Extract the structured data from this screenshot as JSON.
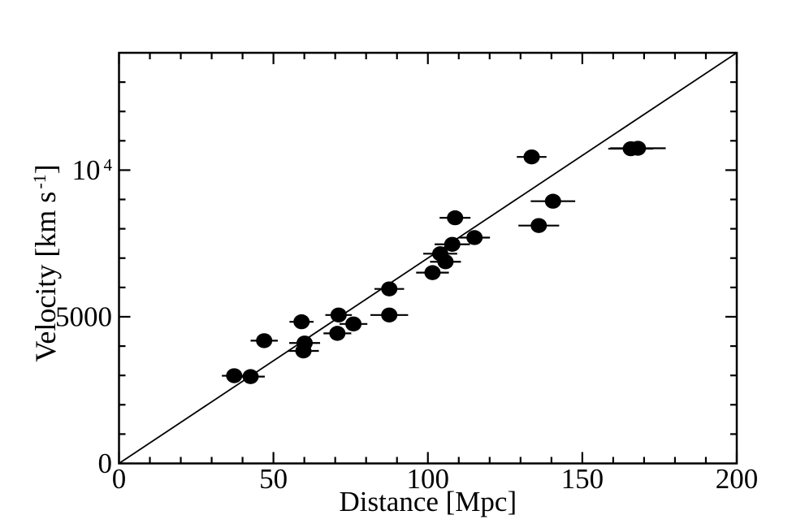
{
  "figure": {
    "background": "#ffffff",
    "ink": "#000000"
  },
  "chart_data": {
    "type": "scatter",
    "title": "",
    "xlabel": "Distance [Mpc]",
    "ylabel": {
      "text": "Velocity [km s",
      "sup": "-1",
      "after": "]"
    },
    "xlim": [
      0,
      200
    ],
    "ylim": [
      0,
      14000
    ],
    "grid": "off",
    "legend": "none",
    "x_major_ticks": [
      {
        "value": 0,
        "label": "0"
      },
      {
        "value": 50,
        "label": "50"
      },
      {
        "value": 100,
        "label": "100"
      },
      {
        "value": 150,
        "label": "150"
      },
      {
        "value": 200,
        "label": "200"
      }
    ],
    "x_minor_step": 10,
    "y_major_ticks": [
      {
        "value": 0,
        "label": "0"
      },
      {
        "value": 5000,
        "label": "5000"
      },
      {
        "value": 10000,
        "label": "10",
        "sup": "4"
      }
    ],
    "y_minor_step": 1000,
    "fit_line": {
      "x": [
        0,
        200
      ],
      "y": [
        0,
        14000
      ]
    },
    "points": [
      {
        "distance_mpc": 37.3,
        "velocity_km_s": 2990,
        "distance_err_mpc": 4.0
      },
      {
        "distance_mpc": 42.6,
        "velocity_km_s": 2960,
        "distance_err_mpc": 4.6
      },
      {
        "distance_mpc": 47.0,
        "velocity_km_s": 4185,
        "distance_err_mpc": 4.4
      },
      {
        "distance_mpc": 59.1,
        "velocity_km_s": 4830,
        "distance_err_mpc": 3.9
      },
      {
        "distance_mpc": 59.7,
        "velocity_km_s": 3835,
        "distance_err_mpc": 5.0
      },
      {
        "distance_mpc": 60.1,
        "velocity_km_s": 4105,
        "distance_err_mpc": 5.0
      },
      {
        "distance_mpc": 70.7,
        "velocity_km_s": 4435,
        "distance_err_mpc": 4.5
      },
      {
        "distance_mpc": 71.1,
        "velocity_km_s": 5060,
        "distance_err_mpc": 4.3
      },
      {
        "distance_mpc": 75.9,
        "velocity_km_s": 4755,
        "distance_err_mpc": 4.5
      },
      {
        "distance_mpc": 87.5,
        "velocity_km_s": 5060,
        "distance_err_mpc": 6.1
      },
      {
        "distance_mpc": 87.5,
        "velocity_km_s": 5950,
        "distance_err_mpc": 4.8
      },
      {
        "distance_mpc": 101.5,
        "velocity_km_s": 6505,
        "distance_err_mpc": 5.3
      },
      {
        "distance_mpc": 104.0,
        "velocity_km_s": 7150,
        "distance_err_mpc": 5.5
      },
      {
        "distance_mpc": 105.7,
        "velocity_km_s": 6875,
        "distance_err_mpc": 5.0
      },
      {
        "distance_mpc": 107.9,
        "velocity_km_s": 7470,
        "distance_err_mpc": 5.7
      },
      {
        "distance_mpc": 108.8,
        "velocity_km_s": 8375,
        "distance_err_mpc": 5.0
      },
      {
        "distance_mpc": 115.1,
        "velocity_km_s": 7700,
        "distance_err_mpc": 5.0
      },
      {
        "distance_mpc": 133.6,
        "velocity_km_s": 10450,
        "distance_err_mpc": 4.8
      },
      {
        "distance_mpc": 135.9,
        "velocity_km_s": 8110,
        "distance_err_mpc": 6.6
      },
      {
        "distance_mpc": 140.5,
        "velocity_km_s": 8940,
        "distance_err_mpc": 7.2
      },
      {
        "distance_mpc": 165.7,
        "velocity_km_s": 10730,
        "distance_err_mpc": 7.3
      },
      {
        "distance_mpc": 168.0,
        "velocity_km_s": 10745,
        "distance_err_mpc": 9.0
      }
    ]
  }
}
